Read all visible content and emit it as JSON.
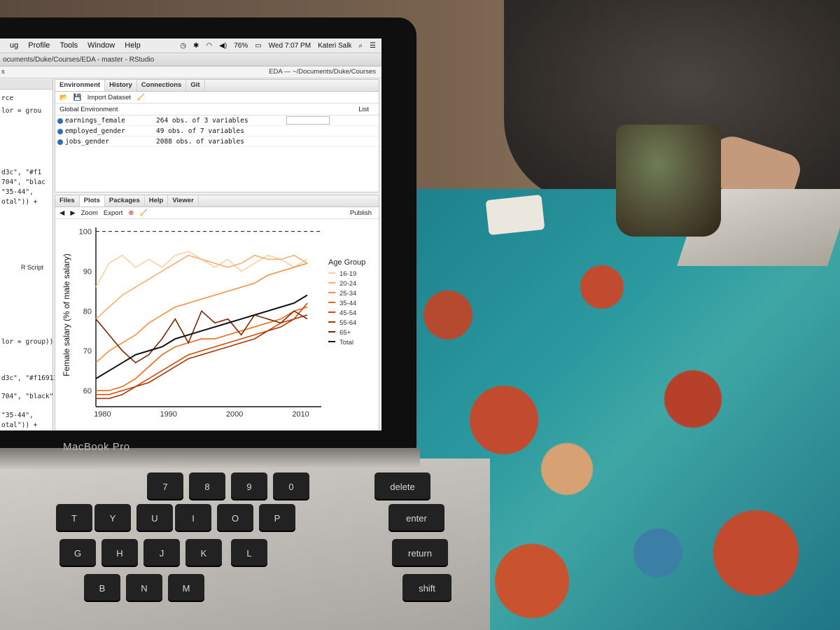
{
  "menubar": {
    "items": [
      "ug",
      "Profile",
      "Tools",
      "Window",
      "Help"
    ],
    "battery": "76%",
    "clock": "Wed 7:07 PM",
    "user": "Kateri Salk"
  },
  "window": {
    "title": "ocuments/Duke/Courses/EDA - master - RStudio",
    "left_tab_fragment": "s",
    "project": "EDA — ~/Documents/Duke/Courses"
  },
  "environment_pane": {
    "tabs": [
      "Environment",
      "History",
      "Connections",
      "Git"
    ],
    "import_label": "Import Dataset",
    "scope": "Global Environment",
    "view_mode": "List",
    "rows": [
      {
        "name": "earnings_female",
        "value": "264 obs. of 3 variables"
      },
      {
        "name": "employed_gender",
        "value": "49 obs. of 7 variables"
      },
      {
        "name": "jobs_gender",
        "value": "2088 obs. of  variables"
      }
    ]
  },
  "plots_pane": {
    "tabs": [
      "Files",
      "Plots",
      "Packages",
      "Help",
      "Viewer"
    ],
    "zoom_label": "Zoom",
    "export_label": "Export",
    "publish_label": "Publish"
  },
  "code_lines": [
    {
      "text": "lor = grou"
    },
    {
      "text": "rce"
    },
    {
      "text": "d3c\", \"#f1"
    },
    {
      "text": "704\", \"blac"
    },
    {
      "text": "\"35-44\","
    },
    {
      "text": "otal\")) +"
    },
    {
      "text": "lor = group))"
    },
    {
      "text": "d3c\", \"#f16913"
    },
    {
      "text": "704\", \"black\")"
    },
    {
      "text": "\"35-44\","
    },
    {
      "text": "otal\")) +"
    }
  ],
  "script_type": "R Script",
  "chart_data": {
    "type": "line",
    "ylabel": "Female salary (% of male salary)",
    "xlabel": "",
    "xlim": [
      1979,
      2011
    ],
    "ylim": [
      57,
      101
    ],
    "x_ticks": [
      1980,
      1990,
      2000,
      2010
    ],
    "y_ticks": [
      60,
      70,
      80,
      90,
      100
    ],
    "reference_line": 100,
    "legend_title": "Age Group",
    "legend_position": "right",
    "grid": false,
    "series": [
      {
        "name": "16-19",
        "color": "#fdd0a2",
        "x": [
          1979,
          1981,
          1983,
          1985,
          1987,
          1989,
          1991,
          1993,
          1995,
          1997,
          1999,
          2001,
          2003,
          2005,
          2007,
          2009,
          2011
        ],
        "y": [
          86,
          92,
          94,
          91,
          93,
          91,
          94,
          95,
          93,
          91,
          93,
          90,
          92,
          94,
          93,
          91,
          93
        ]
      },
      {
        "name": "20-24",
        "color": "#fdae6b",
        "x": [
          1979,
          1981,
          1983,
          1985,
          1987,
          1989,
          1991,
          1993,
          1995,
          1997,
          1999,
          2001,
          2003,
          2005,
          2007,
          2009,
          2011
        ],
        "y": [
          78,
          81,
          84,
          86,
          88,
          90,
          92,
          94,
          93,
          92,
          91,
          92,
          94,
          93,
          93,
          94,
          92
        ]
      },
      {
        "name": "25-34",
        "color": "#fd8d3c",
        "x": [
          1979,
          1981,
          1983,
          1985,
          1987,
          1989,
          1991,
          1993,
          1995,
          1997,
          1999,
          2001,
          2003,
          2005,
          2007,
          2009,
          2011
        ],
        "y": [
          67,
          70,
          72,
          74,
          77,
          79,
          81,
          82,
          83,
          84,
          85,
          86,
          87,
          89,
          90,
          91,
          92
        ]
      },
      {
        "name": "35-44",
        "color": "#f16913",
        "x": [
          1979,
          1981,
          1983,
          1985,
          1987,
          1989,
          1991,
          1993,
          1995,
          1997,
          1999,
          2001,
          2003,
          2005,
          2007,
          2009,
          2011
        ],
        "y": [
          60,
          60,
          61,
          63,
          66,
          69,
          71,
          72,
          73,
          73,
          74,
          75,
          76,
          77,
          78,
          80,
          81
        ]
      },
      {
        "name": "45-54",
        "color": "#d94801",
        "x": [
          1979,
          1981,
          1983,
          1985,
          1987,
          1989,
          1991,
          1993,
          1995,
          1997,
          1999,
          2001,
          2003,
          2005,
          2007,
          2009,
          2011
        ],
        "y": [
          59,
          59,
          60,
          61,
          63,
          65,
          67,
          69,
          70,
          71,
          72,
          73,
          74,
          75,
          77,
          78,
          82
        ]
      },
      {
        "name": "55-64",
        "color": "#a63603",
        "x": [
          1979,
          1981,
          1983,
          1985,
          1987,
          1989,
          1991,
          1993,
          1995,
          1997,
          1999,
          2001,
          2003,
          2005,
          2007,
          2009,
          2011
        ],
        "y": [
          58,
          58,
          59,
          61,
          62,
          64,
          66,
          68,
          69,
          70,
          71,
          72,
          73,
          75,
          76,
          78,
          79
        ]
      },
      {
        "name": "65+",
        "color": "#7f2704",
        "x": [
          1979,
          1981,
          1983,
          1985,
          1987,
          1989,
          1991,
          1993,
          1995,
          1997,
          1999,
          2001,
          2003,
          2005,
          2007,
          2009,
          2011
        ],
        "y": [
          78,
          74,
          70,
          67,
          69,
          73,
          78,
          72,
          80,
          77,
          78,
          74,
          79,
          78,
          77,
          80,
          78
        ]
      },
      {
        "name": "Total",
        "color": "#111111",
        "x": [
          1979,
          1981,
          1983,
          1985,
          1987,
          1989,
          1991,
          1993,
          1995,
          1997,
          1999,
          2001,
          2003,
          2005,
          2007,
          2009,
          2011
        ],
        "y": [
          63,
          65,
          67,
          69,
          70,
          71,
          73,
          74,
          75,
          76,
          77,
          78,
          79,
          80,
          81,
          82,
          84
        ]
      }
    ]
  },
  "hardware": {
    "brand": "MacBook Pro",
    "keys": [
      "delete",
      "enter",
      "return",
      "shift",
      "P",
      "O",
      "I",
      "U",
      "Y",
      "T",
      "K",
      "J",
      "H",
      "G",
      "L",
      "M",
      "N",
      "B",
      "0",
      "9",
      "8",
      "7"
    ]
  }
}
